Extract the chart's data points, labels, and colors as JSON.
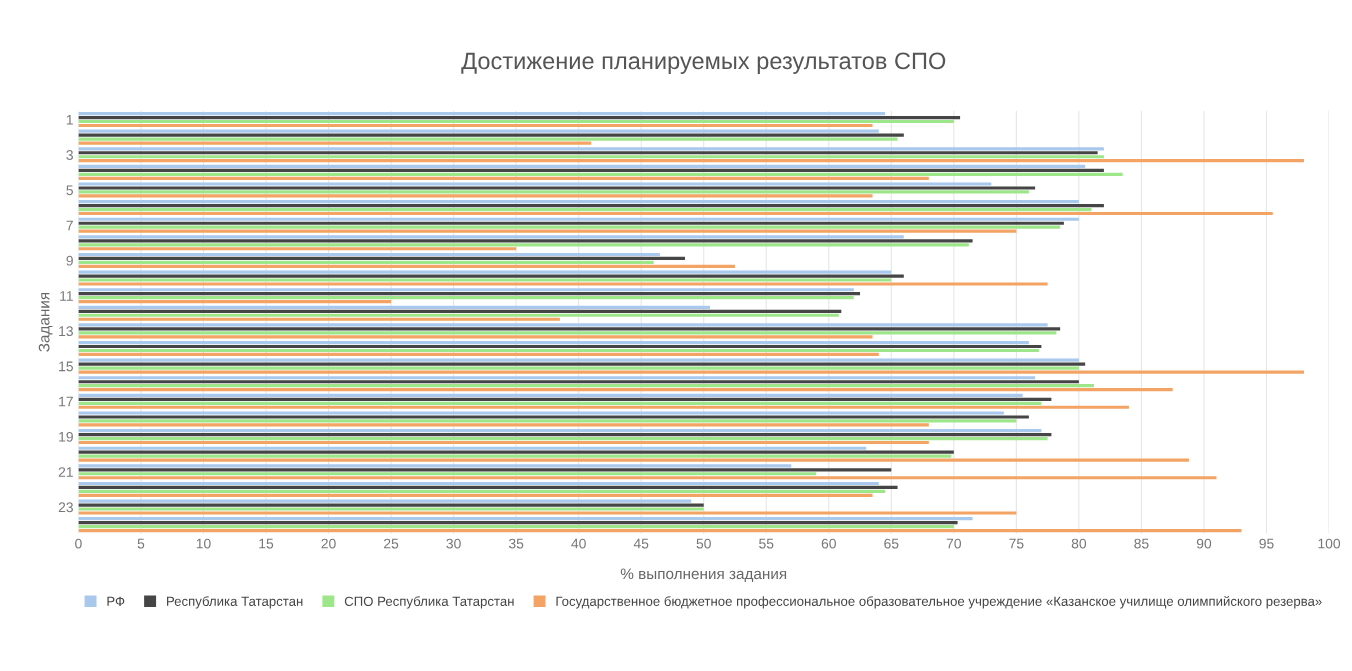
{
  "chart_data": {
    "type": "bar",
    "orientation": "horizontal",
    "title": "Достижение планируемых результатов СПО",
    "xlabel": "% выполнения задания",
    "ylabel": "Задания",
    "categories": [
      "1",
      null,
      "3",
      null,
      "5",
      null,
      "7",
      null,
      "9",
      null,
      "11",
      null,
      "13",
      null,
      "15",
      null,
      "17",
      null,
      "19",
      null,
      "21",
      null,
      "23",
      null
    ],
    "series": [
      {
        "name": "РФ",
        "color": "#a8c8ec",
        "values": [
          64.5,
          64,
          82,
          80.5,
          73,
          80,
          80,
          66,
          46.5,
          65,
          62,
          50.5,
          77.5,
          76,
          80,
          76.5,
          75.5,
          74,
          77,
          63,
          57,
          64,
          49,
          71.5
        ]
      },
      {
        "name": "Республика Татарстан",
        "color": "#454545",
        "values": [
          70.5,
          66,
          81.5,
          82,
          76.5,
          82,
          78.8,
          71.5,
          48.5,
          66,
          62.5,
          61,
          78.5,
          77,
          80.5,
          80,
          77.8,
          76,
          77.8,
          70,
          65,
          65.5,
          50,
          70.3
        ]
      },
      {
        "name": "СПО Республика Татарстан",
        "color": "#9ee68a",
        "values": [
          70,
          65.5,
          82,
          83.5,
          76,
          81,
          78.5,
          71.2,
          46,
          65,
          62,
          60.8,
          78.2,
          76.8,
          80,
          81.2,
          77,
          75,
          77.5,
          69.8,
          59,
          64.5,
          50,
          70
        ]
      },
      {
        "name": "Государственное бюджетное профессиональное образовательное учреждение «Казанское училище олимпийского резерва»",
        "color": "#f3a465",
        "values": [
          63.5,
          41,
          98,
          68,
          63.5,
          95.5,
          75,
          35,
          52.5,
          77.5,
          25,
          38.5,
          63.5,
          64,
          98,
          87.5,
          84,
          68,
          68,
          88.8,
          91,
          63.5,
          75,
          93
        ]
      }
    ],
    "xlim": [
      0,
      100
    ],
    "xticks": [
      0,
      5,
      10,
      15,
      20,
      25,
      30,
      35,
      40,
      45,
      50,
      55,
      60,
      65,
      70,
      75,
      80,
      85,
      90,
      95,
      100
    ],
    "grid": "x",
    "legend": "bottom"
  }
}
